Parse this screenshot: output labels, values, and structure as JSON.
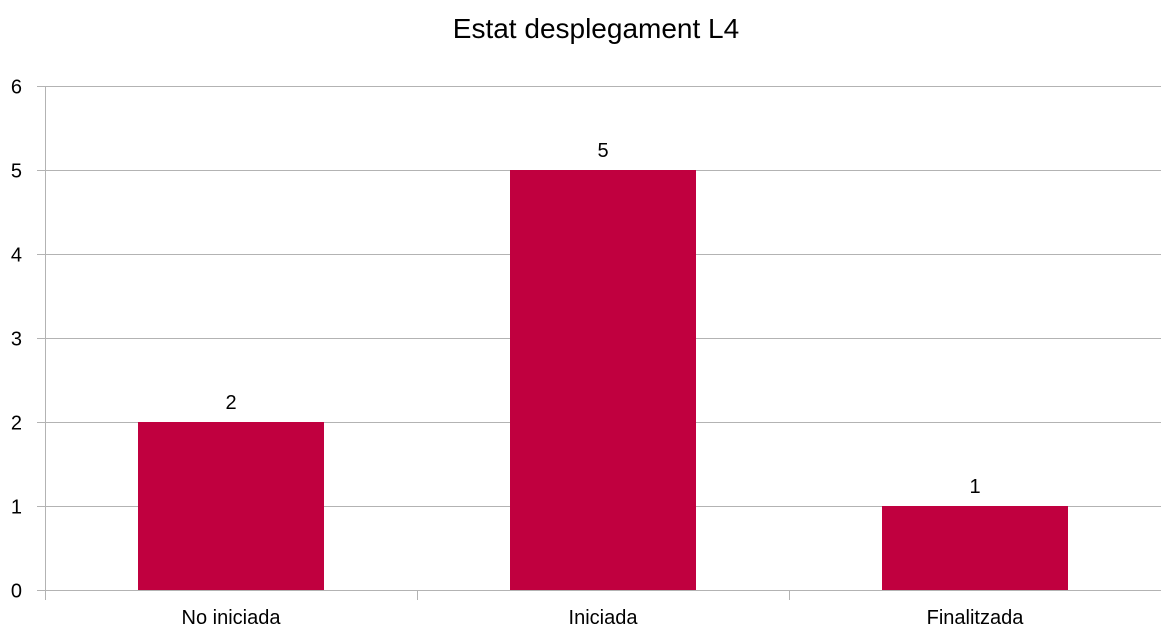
{
  "chart_data": {
    "type": "bar",
    "title": "Estat desplegament L4",
    "xlabel": "",
    "ylabel": "",
    "categories": [
      "No iniciada",
      "Iniciada",
      "Finalitzada"
    ],
    "values": [
      2,
      5,
      1
    ],
    "data_labels": [
      "2",
      "5",
      "1"
    ],
    "ylim": [
      0,
      6
    ],
    "yticks": [
      0,
      1,
      2,
      3,
      4,
      5,
      6
    ],
    "ytick_labels": [
      "0",
      "1",
      "2",
      "3",
      "4",
      "5",
      "6"
    ],
    "grid": true,
    "legend": "none",
    "bar_color": "#c0003f",
    "grid_color": "#b3b3b3",
    "axis_color": "#b3b3b3"
  }
}
